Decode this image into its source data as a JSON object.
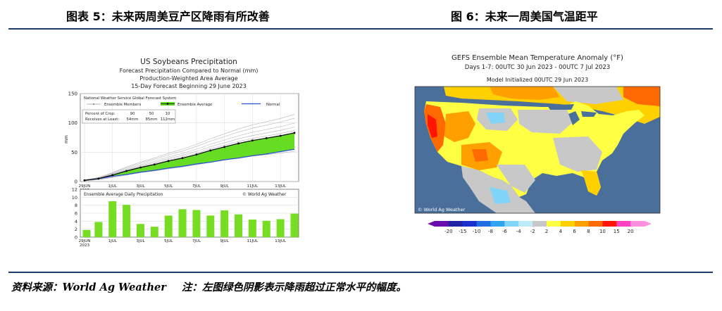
{
  "left_figure": {
    "caption": "图表 5：未来两周美豆产区降雨有所改善",
    "chart_data": {
      "type": "line",
      "title": "US Soybeans Precipitation",
      "subtitle_lines": [
        "Forecast Precipitation Compared to Normal (mm)",
        "Production-Weighted Area Average",
        "15-Day Forecast Beginning 29 June 2023"
      ],
      "ylabel": "mm",
      "ylim": [
        0,
        150
      ],
      "yticks": [
        "0",
        "50",
        "100",
        "150"
      ],
      "x_tick_labels": [
        "29JUN",
        "1JUL",
        "3JUL",
        "5JUL",
        "7JUL",
        "9JUL",
        "11JUL",
        "13JUL"
      ],
      "x_year_label": "2023",
      "legend_header": "National Weather Service Global Forecast System",
      "legend": {
        "members": "Ensemble Members",
        "average": "Ensemble Average",
        "normal": "Normal"
      },
      "stats": {
        "row1_label": "Percent of Crop:",
        "row1_values": [
          "90",
          "50",
          "10"
        ],
        "row2_label": "Receives at Least:",
        "row2_values": [
          "54mm",
          "85mm",
          "112mm"
        ]
      },
      "series": [
        {
          "name": "Ensemble Average",
          "values": [
            2,
            5,
            11,
            18,
            24,
            29,
            35,
            40,
            46,
            53,
            59,
            65,
            70,
            74,
            78,
            83
          ]
        },
        {
          "name": "Normal",
          "values": [
            2,
            5,
            9,
            12,
            16,
            19,
            23,
            26,
            30,
            33,
            37,
            40,
            44,
            47,
            51,
            55
          ]
        }
      ]
    },
    "daily_chart": {
      "type": "bar",
      "title": "Ensemble Average Daily Precipitation",
      "watermark": "© World Ag Weather",
      "ylim": [
        0,
        12
      ],
      "yticks": [
        "0",
        "2",
        "4",
        "6",
        "8",
        "10",
        "12"
      ],
      "x_tick_labels": [
        "29JUN",
        "1JUL",
        "3JUL",
        "5JUL",
        "7JUL",
        "9JUL",
        "11JUL",
        "13JUL"
      ],
      "x_year_label": "2023",
      "values": [
        1.8,
        3.8,
        9.0,
        8.1,
        3.3,
        2.6,
        5.4,
        7.0,
        6.8,
        5.4,
        6.7,
        5.7,
        4.4,
        4.1,
        4.5,
        5.9
      ]
    }
  },
  "right_figure": {
    "caption": "图 6：未来一周美国气温距平",
    "map": {
      "title": "GEFS Ensemble Mean Temperature Anomaly (°F)",
      "subtitle": "Days 1-7: 00UTC 30 Jun 2023 - 00UTC 7 Jul 2023",
      "initialized": "Model Initialized 00UTC 29 Jun 2023",
      "watermark": "© World Ag Weather",
      "colorbar_labels": [
        "-20",
        "-15",
        "-10",
        "-8",
        "-6",
        "-4",
        "-2",
        "2",
        "4",
        "6",
        "8",
        "10",
        "15",
        "20"
      ],
      "colorbar_colors": [
        "#6a0dad",
        "#2020a0",
        "#1a2fd0",
        "#1f6fe0",
        "#2ea5f0",
        "#7fd4f8",
        "#bfeaf8",
        "#c8c8c8",
        "#ffff44",
        "#ffd000",
        "#ffa000",
        "#ff6a00",
        "#ff1500",
        "#ff40c0",
        "#ff90e0"
      ]
    }
  },
  "footer": {
    "source": "资料来源：World Ag Weather",
    "note": "注：左图绿色阴影表示降雨超过正常水平的幅度。"
  },
  "colors": {
    "rule": "#1f3a6b",
    "shade": "#66dd22",
    "normal": "#2a4fd8",
    "bar": "#77dd22",
    "ocean": "#4a6f9a"
  }
}
